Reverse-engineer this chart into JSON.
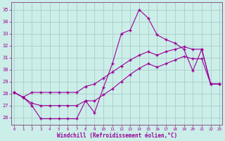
{
  "xlabel": "Windchill (Refroidissement éolien,°C)",
  "bg_color": "#cceee8",
  "grid_color": "#aacccc",
  "line_color": "#990099",
  "spine_color": "#885588",
  "x_ticks": [
    0,
    1,
    2,
    3,
    4,
    5,
    6,
    7,
    8,
    9,
    10,
    11,
    12,
    13,
    14,
    15,
    16,
    17,
    18,
    19,
    20,
    21,
    22,
    23
  ],
  "y_ticks": [
    26,
    27,
    28,
    29,
    30,
    31,
    32,
    33,
    34,
    35
  ],
  "ylim": [
    25.4,
    35.6
  ],
  "xlim": [
    -0.3,
    23.3
  ],
  "line1_x": [
    0,
    1,
    2,
    3,
    4,
    5,
    6,
    7,
    8,
    9,
    10,
    11,
    12,
    13,
    14,
    15,
    16,
    17,
    18,
    19,
    20,
    21,
    22,
    23
  ],
  "line1_y": [
    28.1,
    27.7,
    28.1,
    28.1,
    28.1,
    28.1,
    28.1,
    28.1,
    28.6,
    28.8,
    29.3,
    29.8,
    30.3,
    30.8,
    31.2,
    31.5,
    31.2,
    31.5,
    31.7,
    31.9,
    31.7,
    31.7,
    28.8,
    28.8
  ],
  "line2_x": [
    0,
    1,
    2,
    3,
    4,
    5,
    6,
    7,
    8,
    9,
    10,
    11,
    12,
    13,
    14,
    15,
    16,
    17,
    18,
    19,
    20,
    21,
    22,
    23
  ],
  "line2_y": [
    28.1,
    27.7,
    27.2,
    27.0,
    27.0,
    27.0,
    27.0,
    27.0,
    27.4,
    27.4,
    27.9,
    28.4,
    29.0,
    29.6,
    30.1,
    30.5,
    30.2,
    30.5,
    30.8,
    31.1,
    30.9,
    30.9,
    28.8,
    28.8
  ],
  "line3_x": [
    0,
    1,
    2,
    3,
    4,
    5,
    6,
    7,
    8,
    9,
    10,
    11,
    12,
    13,
    14,
    15,
    16,
    17,
    18,
    19,
    20,
    21,
    22,
    23
  ],
  "line3_y": [
    28.1,
    27.7,
    27.0,
    25.9,
    25.9,
    25.9,
    25.9,
    25.9,
    27.4,
    26.4,
    28.5,
    30.5,
    33.0,
    33.3,
    35.0,
    34.3,
    32.9,
    32.5,
    32.2,
    31.7,
    29.9,
    31.7,
    28.8,
    28.8
  ]
}
